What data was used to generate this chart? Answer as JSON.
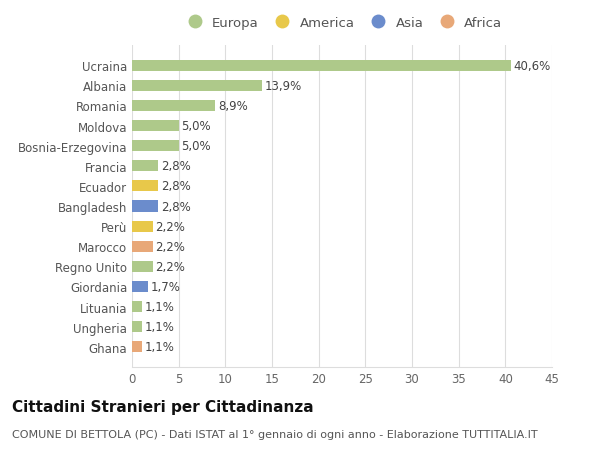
{
  "title": "Cittadini Stranieri per Cittadinanza",
  "subtitle": "COMUNE DI BETTOLA (PC) - Dati ISTAT al 1° gennaio di ogni anno - Elaborazione TUTTITALIA.IT",
  "categories": [
    "Ucraina",
    "Albania",
    "Romania",
    "Moldova",
    "Bosnia-Erzegovina",
    "Francia",
    "Ecuador",
    "Bangladesh",
    "Perù",
    "Marocco",
    "Regno Unito",
    "Giordania",
    "Lituania",
    "Ungheria",
    "Ghana"
  ],
  "values": [
    40.6,
    13.9,
    8.9,
    5.0,
    5.0,
    2.8,
    2.8,
    2.8,
    2.2,
    2.2,
    2.2,
    1.7,
    1.1,
    1.1,
    1.1
  ],
  "labels": [
    "40,6%",
    "13,9%",
    "8,9%",
    "5,0%",
    "5,0%",
    "2,8%",
    "2,8%",
    "2,8%",
    "2,2%",
    "2,2%",
    "2,2%",
    "1,7%",
    "1,1%",
    "1,1%",
    "1,1%"
  ],
  "continents": [
    "Europa",
    "Europa",
    "Europa",
    "Europa",
    "Europa",
    "Europa",
    "America",
    "Asia",
    "America",
    "Africa",
    "Europa",
    "Asia",
    "Europa",
    "Europa",
    "Africa"
  ],
  "colors": {
    "Europa": "#aec98a",
    "America": "#e8c84a",
    "Asia": "#6b8ccc",
    "Africa": "#e8a878"
  },
  "legend_order": [
    "Europa",
    "America",
    "Asia",
    "Africa"
  ],
  "xlim": [
    0,
    45
  ],
  "xticks": [
    0,
    5,
    10,
    15,
    20,
    25,
    30,
    35,
    40,
    45
  ],
  "bg_color": "#ffffff",
  "grid_color": "#dddddd",
  "bar_height": 0.55,
  "title_fontsize": 11,
  "subtitle_fontsize": 8,
  "label_fontsize": 8.5,
  "tick_fontsize": 8.5,
  "legend_fontsize": 9.5
}
